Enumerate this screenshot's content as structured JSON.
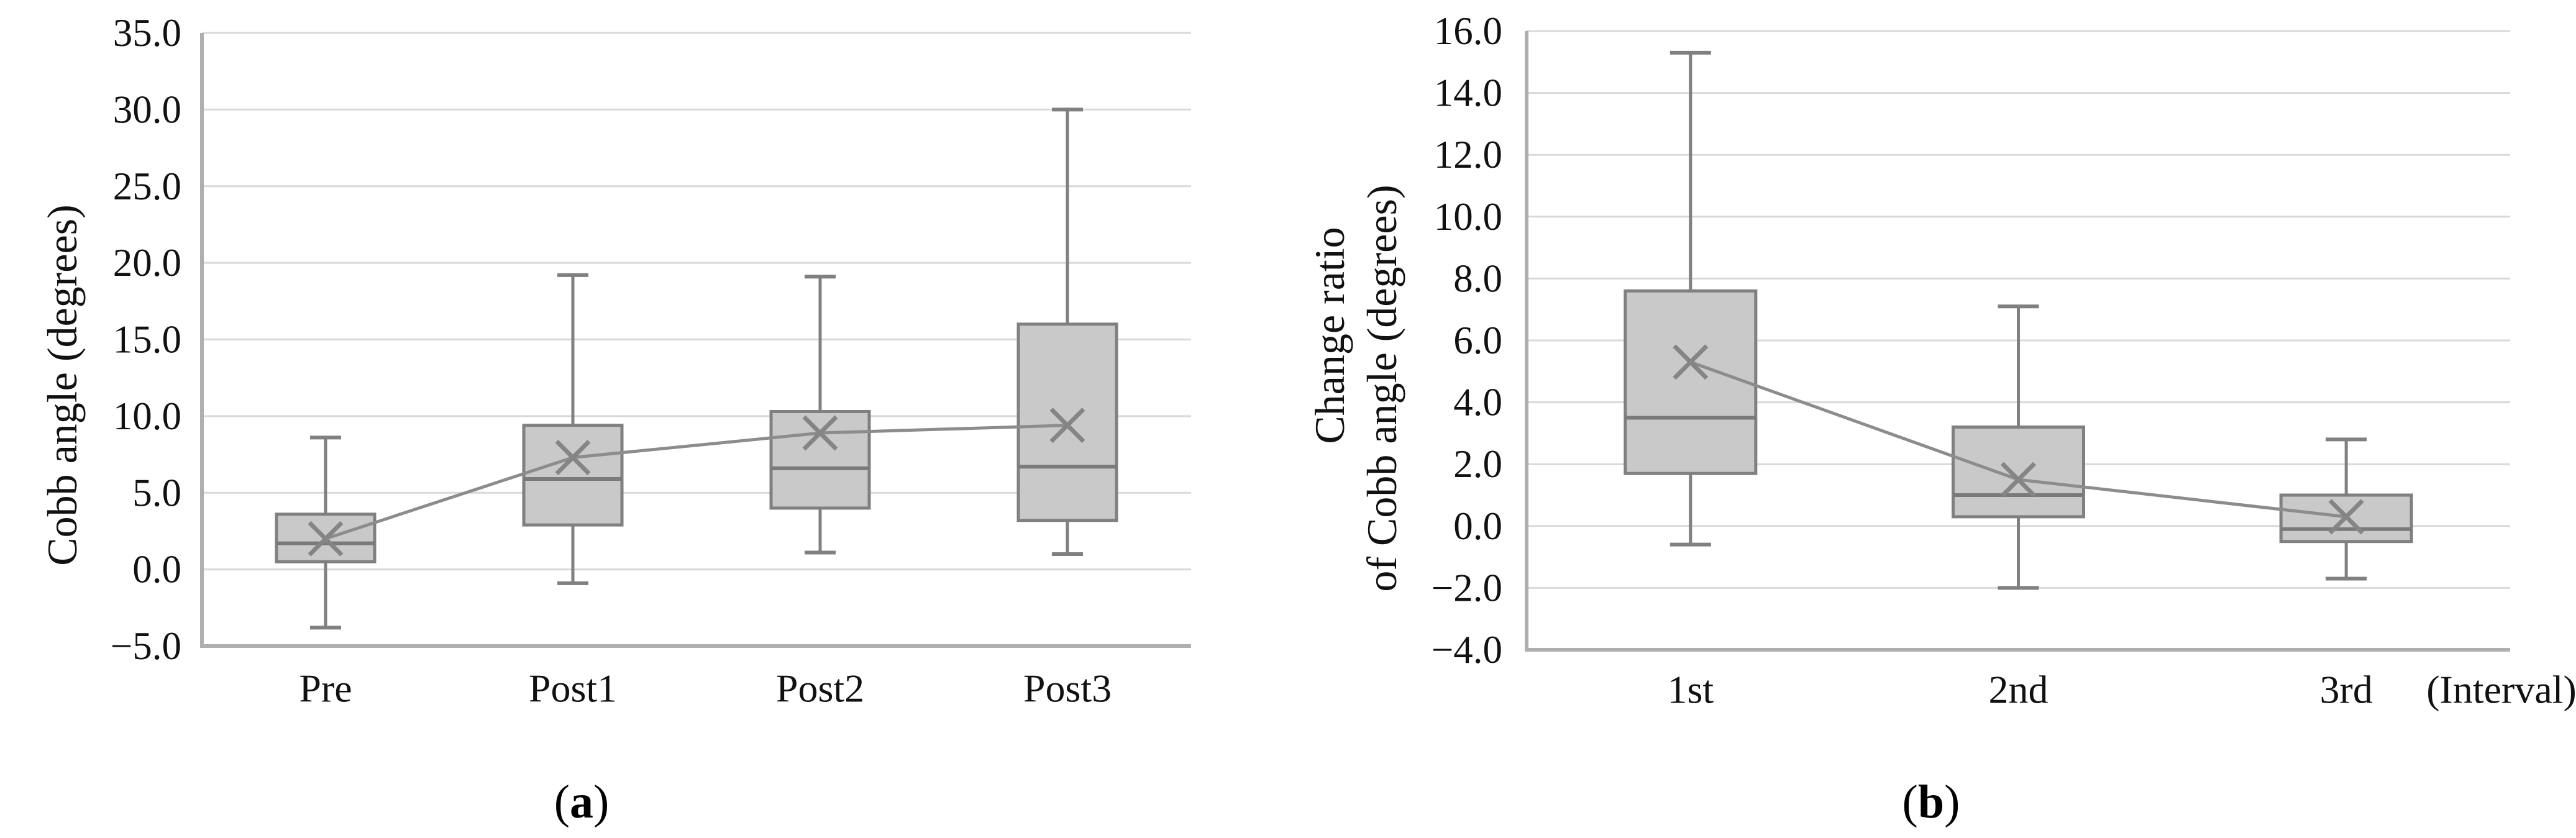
{
  "figure": {
    "background": "#ffffff"
  },
  "colors": {
    "box_fill": "#c9c9c9",
    "box_border": "#808080",
    "median_line": "#7a7a7a",
    "whisker": "#808080",
    "mean_marker": "#858585",
    "mean_connector_line": "#8c8c8c",
    "gridline": "#d9d9d9",
    "axis_line": "#afafaf",
    "text": "#111111"
  },
  "captions": {
    "a": {
      "open": "(",
      "letter": "a",
      "close": ")"
    },
    "b": {
      "open": "(",
      "letter": "b",
      "close": ")"
    }
  },
  "chart_data": [
    {
      "type": "box",
      "panel": "a",
      "title": "",
      "ylabel_lines": [
        "Cobb angle (degrees)"
      ],
      "ylim": [
        -5.0,
        35.0
      ],
      "ytick_step": 5.0,
      "ytick_labels": [
        "35.0",
        "30.0",
        "25.0",
        "20.0",
        "15.0",
        "10.0",
        "5.0",
        "0.0",
        "−5.0"
      ],
      "categories": [
        "Pre",
        "Post1",
        "Post2",
        "Post3"
      ],
      "x_axis_note": "",
      "grid": true,
      "legend": "none",
      "mean_markers_connected": true,
      "boxes": [
        {
          "category": "Pre",
          "whisker_low": -3.8,
          "q1": 0.5,
          "median": 1.7,
          "q3": 3.6,
          "whisker_high": 8.6,
          "mean": 2.0
        },
        {
          "category": "Post1",
          "whisker_low": -0.9,
          "q1": 2.9,
          "median": 5.9,
          "q3": 9.4,
          "whisker_high": 19.2,
          "mean": 7.3
        },
        {
          "category": "Post2",
          "whisker_low": 1.1,
          "q1": 4.0,
          "median": 6.6,
          "q3": 10.3,
          "whisker_high": 19.1,
          "mean": 8.9
        },
        {
          "category": "Post3",
          "whisker_low": 1.0,
          "q1": 3.2,
          "median": 6.7,
          "q3": 16.0,
          "whisker_high": 30.0,
          "mean": 9.4
        }
      ]
    },
    {
      "type": "box",
      "panel": "b",
      "title": "",
      "ylabel_lines": [
        "Change ratio",
        "of Cobb angle (degrees)"
      ],
      "ylim": [
        -4.0,
        16.0
      ],
      "ytick_step": 2.0,
      "ytick_labels": [
        "16.0",
        "14.0",
        "12.0",
        "10.0",
        "8.0",
        "6.0",
        "4.0",
        "2.0",
        "0.0",
        "−2.0",
        "−4.0"
      ],
      "categories": [
        "1st",
        "2nd",
        "3rd"
      ],
      "x_axis_note": "(Interval)",
      "grid": true,
      "legend": "none",
      "mean_markers_connected": true,
      "boxes": [
        {
          "category": "1st",
          "whisker_low": -0.6,
          "q1": 1.7,
          "median": 3.5,
          "q3": 7.6,
          "whisker_high": 15.3,
          "mean": 5.3
        },
        {
          "category": "2nd",
          "whisker_low": -2.0,
          "q1": 0.3,
          "median": 1.0,
          "q3": 3.2,
          "whisker_high": 7.1,
          "mean": 1.5
        },
        {
          "category": "3rd",
          "whisker_low": -1.7,
          "q1": -0.5,
          "median": -0.1,
          "q3": 1.0,
          "whisker_high": 2.8,
          "mean": 0.3
        }
      ]
    }
  ]
}
